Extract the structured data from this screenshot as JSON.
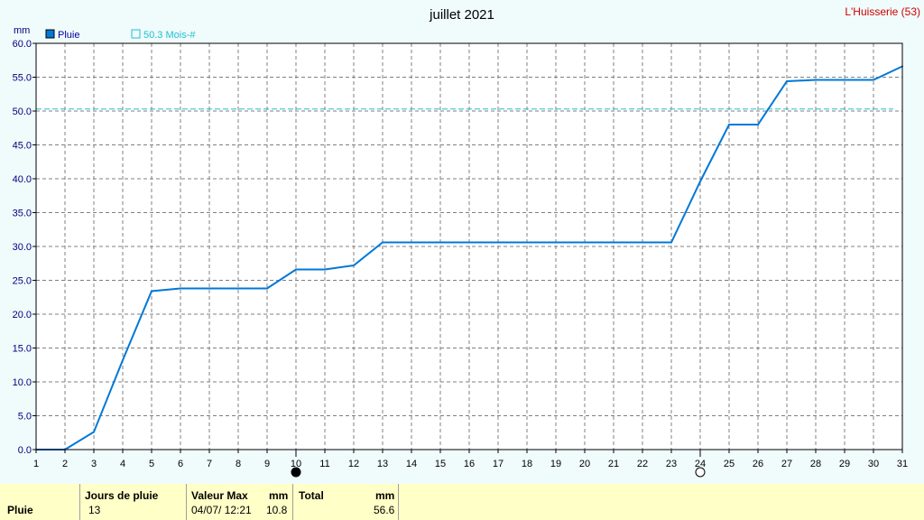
{
  "chart_data": {
    "type": "line",
    "title": "juillet 2021",
    "station": "L'Huisserie (53)",
    "ylabel": "mm",
    "ylim": [
      0,
      60
    ],
    "yticks": [
      "0.0",
      "5.0",
      "10.0",
      "15.0",
      "20.0",
      "25.0",
      "30.0",
      "35.0",
      "40.0",
      "45.0",
      "50.0",
      "55.0",
      "60.0"
    ],
    "xlim": [
      1,
      31
    ],
    "xticks": [
      "1",
      "2",
      "3",
      "4",
      "5",
      "6",
      "7",
      "8",
      "9",
      "10",
      "11",
      "12",
      "13",
      "14",
      "15",
      "16",
      "17",
      "18",
      "19",
      "20",
      "21",
      "22",
      "23",
      "24",
      "25",
      "26",
      "27",
      "28",
      "29",
      "30",
      "31"
    ],
    "grid": true,
    "legend_position": "top-left",
    "series": [
      {
        "name": "Pluie",
        "color": "#0078d7",
        "x": [
          1,
          2,
          3,
          4,
          5,
          6,
          7,
          8,
          9,
          10,
          11,
          12,
          13,
          14,
          15,
          16,
          17,
          18,
          19,
          20,
          21,
          22,
          23,
          24,
          25,
          26,
          27,
          28,
          29,
          30,
          31
        ],
        "y": [
          0,
          0,
          2.6,
          13.2,
          23.4,
          23.8,
          23.8,
          23.8,
          23.8,
          26.6,
          26.6,
          27.2,
          30.6,
          30.6,
          30.6,
          30.6,
          30.6,
          30.6,
          30.6,
          30.6,
          30.6,
          30.6,
          30.6,
          39.6,
          48.0,
          48.0,
          54.4,
          54.6,
          54.6,
          54.6,
          56.6
        ]
      }
    ],
    "reference": {
      "label": "50.3 Mois-#",
      "value": 50.3,
      "color": "#20c0d0"
    },
    "moon_phases": [
      {
        "day": 10,
        "phase": "new-moon"
      },
      {
        "day": 24,
        "phase": "full-moon"
      }
    ]
  },
  "footer": {
    "row_label": "Pluie",
    "rain_days_header": "Jours de pluie",
    "rain_days_value": "13",
    "max_header": "Valeur Max",
    "max_unit": "mm",
    "max_datetime": "04/07/  12:21",
    "max_value": "10.8",
    "total_header": "Total",
    "total_unit": "mm",
    "total_value": "56.6"
  }
}
